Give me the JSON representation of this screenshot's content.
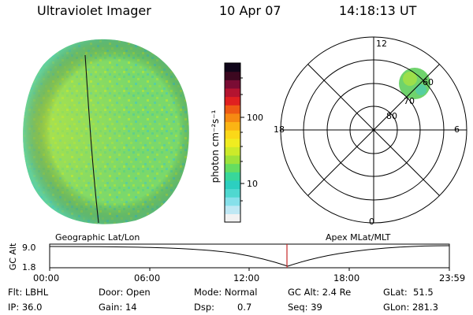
{
  "header": {
    "title": "Ultraviolet Imager",
    "date": "10 Apr 07",
    "time": "14:18:13 UT"
  },
  "colorbar": {
    "unit_label": "photon cm⁻²s⁻¹",
    "ticks": [
      "100",
      "10"
    ],
    "colors": [
      "#f2f2f2",
      "#bfe8f4",
      "#86e0ea",
      "#4fd8d0",
      "#2ccfc0",
      "#38d79a",
      "#66dd60",
      "#9ee23a",
      "#ccea2a",
      "#f0ec20",
      "#fbd818",
      "#fbb414",
      "#f68a12",
      "#ee5a14",
      "#e02020",
      "#b41430",
      "#7a0c34",
      "#3c0820",
      "#10061a"
    ]
  },
  "polar_plot": {
    "mlt_labels": {
      "top": "12",
      "right": "6",
      "bottom": "0",
      "left": "18"
    },
    "lat_labels": [
      "80",
      "70",
      "60"
    ]
  },
  "timeline": {
    "left_title": "Geographic Lat/Lon",
    "right_title": "Apex MLat/MLT",
    "y_axis_label": "GC Alt",
    "y_ticks": [
      "9.0",
      "1.8"
    ],
    "x_ticks": [
      "00:00",
      "06:00",
      "12:00",
      "18:00",
      "23:59"
    ]
  },
  "info": {
    "filter": "Flt: LBHL",
    "ip": "IP: 36.0",
    "door": "Door: Open",
    "gain": "Gain: 14",
    "mode": "Mode: Normal",
    "dsp": "Dsp:",
    "dsp_value": "0.7",
    "gc_alt": "GC Alt: 2.4 Re",
    "seq": "Seq: 39",
    "glat": "GLat:  51.5",
    "glon": "GLon: 281.3"
  }
}
